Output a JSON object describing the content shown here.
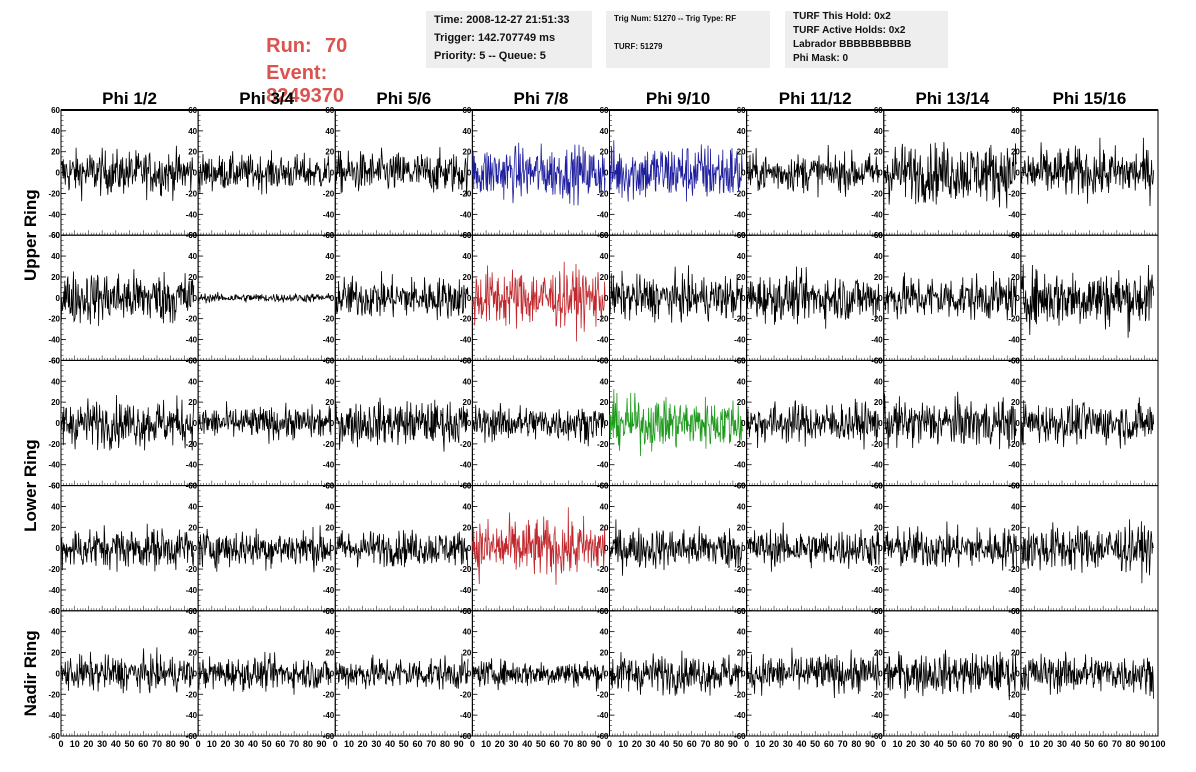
{
  "header": {
    "run_label": "Run:",
    "run_value": "70",
    "event_label": "Event:",
    "event_value": "8249370"
  },
  "info_box_1": {
    "time": "Time: 2008-12-27 21:51:33",
    "trigger": "Trigger: 142.707749 ms",
    "priority": "Priority: 5 -- Queue: 5"
  },
  "info_box_2": {
    "trig": "Trig Num: 51270 -- Trig Type: RF",
    "turf": "TURF: 51279"
  },
  "info_box_3": {
    "hold": "TURF This Hold: 0x2",
    "active": "TURF Active Holds: 0x2",
    "labrador": "Labrador BBBBBBBBBB",
    "phimask": "Phi Mask: 0"
  },
  "colors": {
    "header_red": "#d9534f",
    "trace_default": "#000000",
    "trace_blue": "#1f1f9e",
    "trace_red": "#c0282d",
    "trace_green": "#1f9a1f",
    "info_bg": "#eeeeee"
  },
  "chart_data": {
    "type": "line",
    "title": "",
    "columns": [
      "Phi 1/2",
      "Phi 3/4",
      "Phi 5/6",
      "Phi 7/8",
      "Phi 9/10",
      "Phi 11/12",
      "Phi 13/14",
      "Phi 15/16"
    ],
    "rows": [
      {
        "label": "Upper Ring",
        "position": "upper"
      },
      {
        "label": "",
        "position": "upper"
      },
      {
        "label": "Lower Ring",
        "position": "lower"
      },
      {
        "label": "",
        "position": "lower"
      },
      {
        "label": "Nadir Ring",
        "position": "nadir"
      }
    ],
    "ylim": [
      -60,
      60
    ],
    "xlim": [
      0,
      100
    ],
    "y_ticks": [
      -60,
      -40,
      -20,
      0,
      20,
      40,
      60
    ],
    "x_ticks": [
      0,
      10,
      20,
      30,
      40,
      50,
      60,
      70,
      80,
      90,
      100
    ],
    "x_tick_labels": [
      "0",
      "10",
      "20",
      "30",
      "40",
      "50",
      "60",
      "70",
      "80",
      "90",
      "100"
    ],
    "y_tick_labels": [
      "-60",
      "-40",
      "-20",
      "0",
      "20",
      "40",
      "60"
    ],
    "samples_per_trace": 260,
    "amplitude": [
      [
        15,
        12,
        14,
        18,
        20,
        13,
        20,
        17
      ],
      [
        18,
        3,
        14,
        20,
        15,
        16,
        15,
        20
      ],
      [
        16,
        11,
        15,
        12,
        17,
        14,
        16,
        14
      ],
      [
        14,
        13,
        12,
        20,
        14,
        13,
        14,
        16
      ],
      [
        12,
        11,
        11,
        9,
        13,
        13,
        14,
        13
      ]
    ],
    "trace_color": [
      [
        "trace_default",
        "trace_default",
        "trace_default",
        "trace_blue",
        "trace_blue",
        "trace_default",
        "trace_default",
        "trace_default"
      ],
      [
        "trace_default",
        "trace_default",
        "trace_default",
        "trace_red",
        "trace_default",
        "trace_default",
        "trace_default",
        "trace_default"
      ],
      [
        "trace_default",
        "trace_default",
        "trace_default",
        "trace_default",
        "trace_green",
        "trace_default",
        "trace_default",
        "trace_default"
      ],
      [
        "trace_default",
        "trace_default",
        "trace_default",
        "trace_red",
        "trace_default",
        "trace_default",
        "trace_default",
        "trace_default"
      ],
      [
        "trace_default",
        "trace_default",
        "trace_default",
        "trace_default",
        "trace_default",
        "trace_default",
        "trace_default",
        "trace_default"
      ]
    ],
    "grid": false,
    "legend": "none"
  }
}
